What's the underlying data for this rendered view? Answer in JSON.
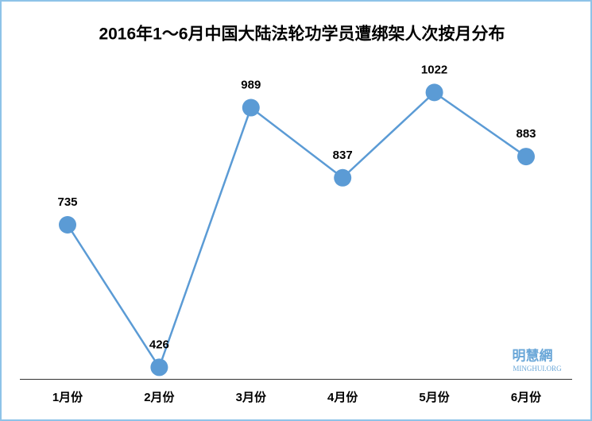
{
  "chart_data": {
    "type": "line",
    "title": "2016年1～6月中国大陆法轮功学员遭绑架人次按月分布",
    "categories": [
      "1月份",
      "2月份",
      "3月份",
      "4月份",
      "5月份",
      "6月份"
    ],
    "series": [
      {
        "name": "人次",
        "color": "#5b9bd5",
        "values": [
          735,
          426,
          989,
          837,
          1022,
          883
        ]
      }
    ],
    "ylim": [
      400,
      1100
    ],
    "watermark": {
      "title": "明慧網",
      "subtitle": "MINGHUI.ORG"
    }
  }
}
